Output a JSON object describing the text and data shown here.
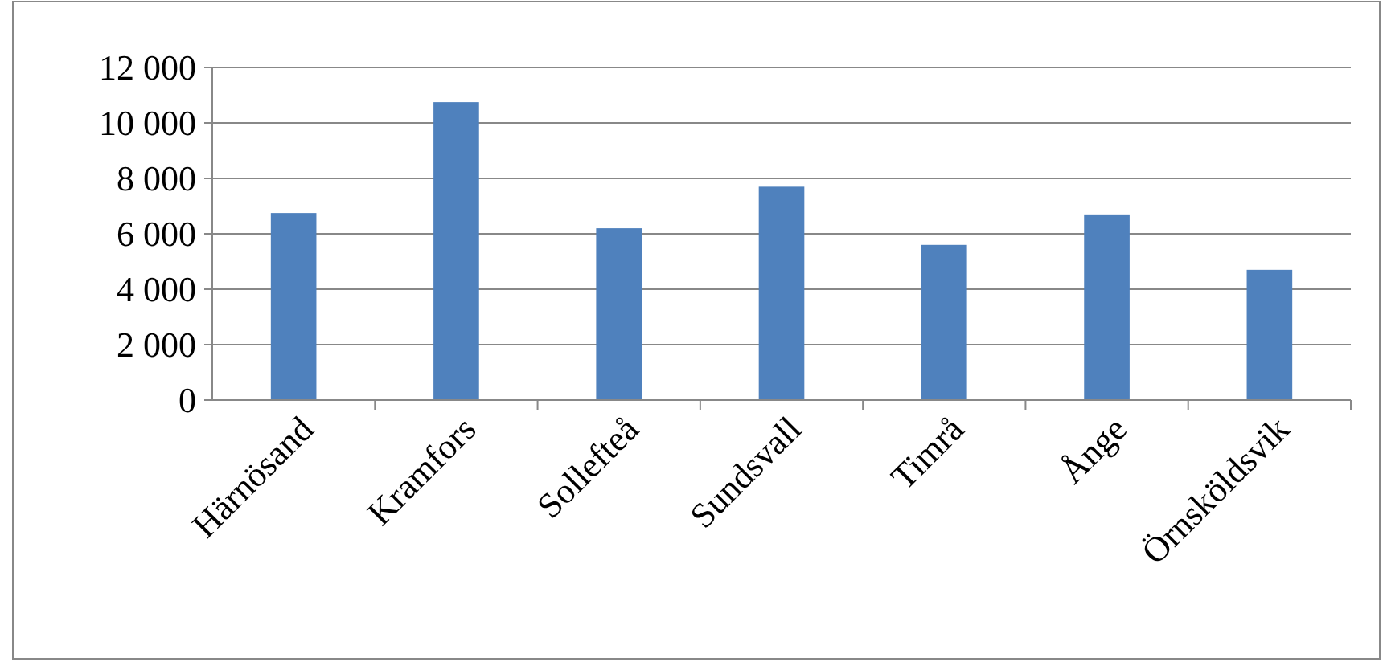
{
  "chart_data": {
    "type": "bar",
    "categories": [
      "Härnösand",
      "Kramfors",
      "Sollefteå",
      "Sundsvall",
      "Timrå",
      "Ånge",
      "Örnsköldsvik"
    ],
    "values": [
      6750,
      10750,
      6200,
      7700,
      5600,
      6700,
      4700
    ],
    "color": "#4f81bd",
    "ylim": [
      0,
      12000
    ],
    "yticks": [
      0,
      {
        "value": 2000,
        "label": "2 000"
      },
      {
        "value": 4000,
        "label": "4 000"
      },
      {
        "value": 6000,
        "label": "6 000"
      },
      {
        "value": 8000,
        "label": "8 000"
      },
      {
        "value": 10000,
        "label": "10 000"
      },
      {
        "value": 12000,
        "label": "12 000"
      }
    ],
    "grid": "y"
  }
}
